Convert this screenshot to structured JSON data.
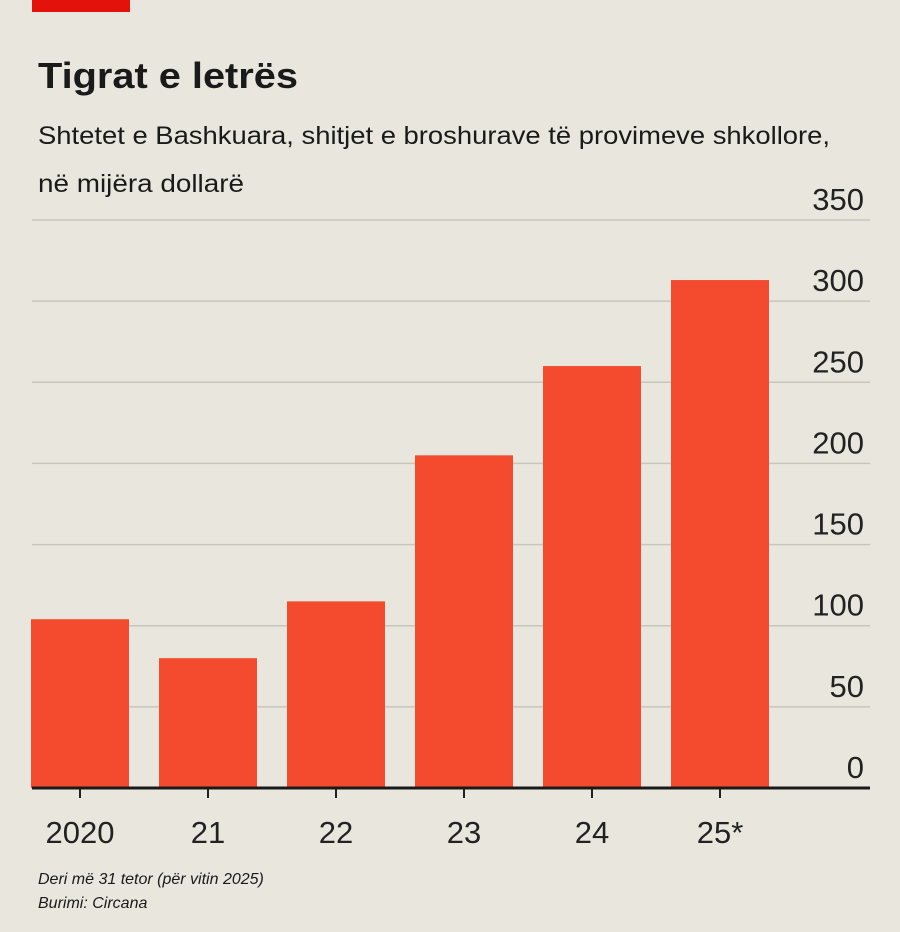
{
  "chart_data": {
    "type": "bar",
    "title": "Tigrat e letrës",
    "subtitle": [
      "Shtetet e Bashkuara, shitjet e broshurave të provimeve shkollore,",
      "në mijëra dollarë"
    ],
    "categories": [
      "2020",
      "21",
      "22",
      "23",
      "24",
      "25*"
    ],
    "values": [
      104,
      80,
      115,
      205,
      260,
      313
    ],
    "color": "#f44b2f",
    "ylim": [
      0,
      350
    ],
    "yticks": [
      0,
      50,
      100,
      150,
      200,
      250,
      300,
      350
    ],
    "grid": true,
    "footnote": "Deri më 31 tetor (për vitin 2025)",
    "source": "Burimi: Circana"
  }
}
